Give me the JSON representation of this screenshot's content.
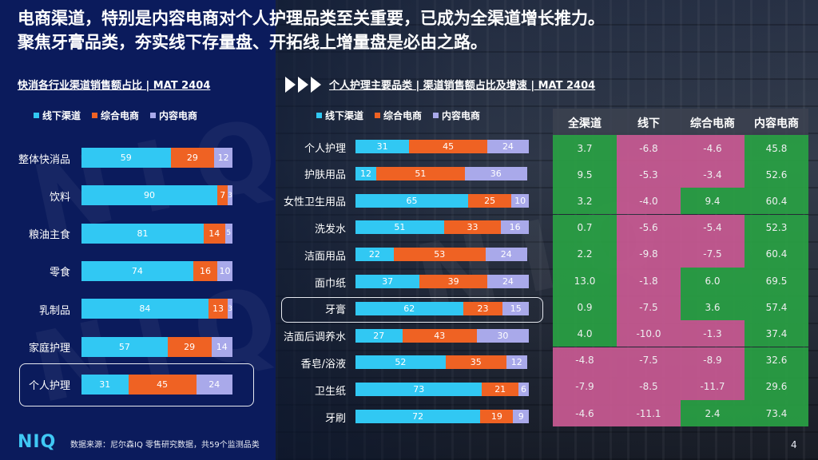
{
  "title": {
    "line1": "电商渠道，特别是内容电商对个人护理品类至关重要，已成为全渠道增长推力。",
    "line2": "聚焦牙膏品类，夯实线下存量盘、开拓线上增量盘是必由之路。"
  },
  "colors": {
    "offline": "#31c8f3",
    "ecom": "#ef6223",
    "content": "#a9a9ea",
    "green": "#29a144",
    "pink": "#c95a93"
  },
  "watermark": "NIQ",
  "legend": [
    "线下渠道",
    "综合电商",
    "内容电商"
  ],
  "chart_data": [
    {
      "type": "bar",
      "title": "快消各行业渠道销售额占比 | MAT 2404",
      "categories": [
        "整体快消品",
        "饮料",
        "粮油主食",
        "零食",
        "乳制品",
        "家庭护理",
        "个人护理"
      ],
      "series": [
        {
          "name": "线下渠道",
          "values": [
            59,
            90,
            81,
            74,
            84,
            57,
            31
          ]
        },
        {
          "name": "综合电商",
          "values": [
            29,
            7,
            14,
            16,
            13,
            29,
            45
          ]
        },
        {
          "name": "内容电商",
          "values": [
            12,
            3,
            5,
            10,
            3,
            14,
            24
          ]
        }
      ],
      "stacked": true,
      "highlight": "个人护理"
    },
    {
      "type": "bar",
      "title": "个人护理主要品类 | 渠道销售额占比及增速 | MAT 2404",
      "categories": [
        "个人护理",
        "护肤用品",
        "女性卫生用品",
        "洗发水",
        "洁面用品",
        "面巾纸",
        "牙膏",
        "洁面后调养水",
        "香皂/浴液",
        "卫生纸",
        "牙刷"
      ],
      "series": [
        {
          "name": "线下渠道",
          "values": [
            31,
            12,
            65,
            51,
            22,
            37,
            62,
            27,
            52,
            73,
            72
          ]
        },
        {
          "name": "综合电商",
          "values": [
            45,
            51,
            25,
            33,
            53,
            39,
            23,
            43,
            35,
            21,
            19
          ]
        },
        {
          "name": "内容电商",
          "values": [
            24,
            36,
            10,
            16,
            24,
            24,
            15,
            30,
            12,
            6,
            9
          ]
        }
      ],
      "stacked": true,
      "highlight": "牙膏"
    },
    {
      "type": "table",
      "columns": [
        "全渠道",
        "线下",
        "综合电商",
        "内容电商"
      ],
      "rows": [
        [
          "3.7",
          "-6.8",
          "-4.6",
          "45.8"
        ],
        [
          "9.5",
          "-5.3",
          "-3.4",
          "52.6"
        ],
        [
          "3.2",
          "-4.0",
          "9.4",
          "60.4"
        ],
        [
          "0.7",
          "-5.6",
          "-5.4",
          "52.3"
        ],
        [
          "2.2",
          "-9.8",
          "-7.5",
          "60.4"
        ],
        [
          "13.0",
          "-1.8",
          "6.0",
          "69.5"
        ],
        [
          "0.9",
          "-7.5",
          "3.6",
          "57.4"
        ],
        [
          "4.0",
          "-10.0",
          "-1.3",
          "37.4"
        ],
        [
          "-4.8",
          "-7.5",
          "-8.9",
          "32.6"
        ],
        [
          "-7.9",
          "-8.5",
          "-11.7",
          "29.6"
        ],
        [
          "-4.6",
          "-11.1",
          "2.4",
          "73.4"
        ]
      ],
      "cell_colors": [
        [
          "green",
          "pink",
          "pink",
          "green"
        ],
        [
          "green",
          "pink",
          "pink",
          "green"
        ],
        [
          "green",
          "pink",
          "green",
          "green"
        ],
        [
          "green",
          "pink",
          "pink",
          "green"
        ],
        [
          "green",
          "pink",
          "pink",
          "green"
        ],
        [
          "green",
          "pink",
          "green",
          "green"
        ],
        [
          "green",
          "pink",
          "green",
          "green"
        ],
        [
          "green",
          "pink",
          "pink",
          "green"
        ],
        [
          "pink",
          "pink",
          "pink",
          "green"
        ],
        [
          "pink",
          "pink",
          "pink",
          "green"
        ],
        [
          "pink",
          "pink",
          "green",
          "green"
        ]
      ]
    }
  ],
  "footer": {
    "logo": "NIQ",
    "source": "数据来源：尼尔森IQ 零售研究数据，共59个监测品类",
    "page": "4"
  }
}
